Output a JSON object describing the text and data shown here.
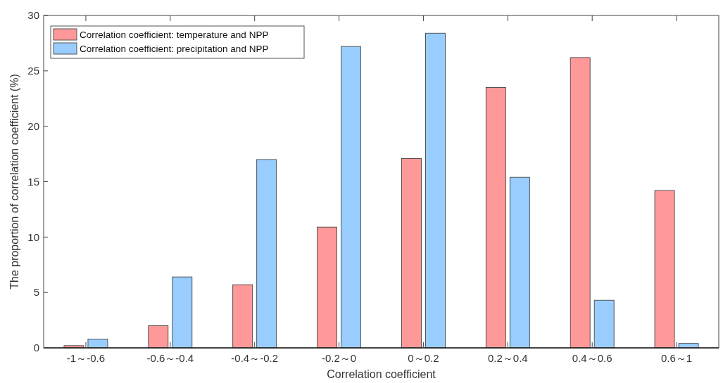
{
  "chart_data": {
    "type": "bar",
    "xlabel": "Correlation coefficient",
    "ylabel": "The proportion of correlation coefficient (%)",
    "categories": [
      "-1～-0.6",
      "-0.6～-0.4",
      "-0.4～-0.2",
      "-0.2～0",
      "0～0.2",
      "0.2～0.4",
      "0.4～0.6",
      "0.6～1"
    ],
    "series": [
      {
        "name": "Correlation coefficient: temperature and NPP",
        "color": "#ff9999",
        "values": [
          0.2,
          2.0,
          5.7,
          10.9,
          17.1,
          23.5,
          26.2,
          14.2
        ]
      },
      {
        "name": "Correlation coefficient: precipitation and NPP",
        "color": "#99ccff",
        "values": [
          0.8,
          6.4,
          17.0,
          27.2,
          28.4,
          15.4,
          4.3,
          0.4
        ]
      }
    ],
    "ylim": [
      0,
      30
    ],
    "yticks": [
      0,
      5,
      10,
      15,
      20,
      25,
      30
    ],
    "grid": false,
    "legend": "top left"
  }
}
